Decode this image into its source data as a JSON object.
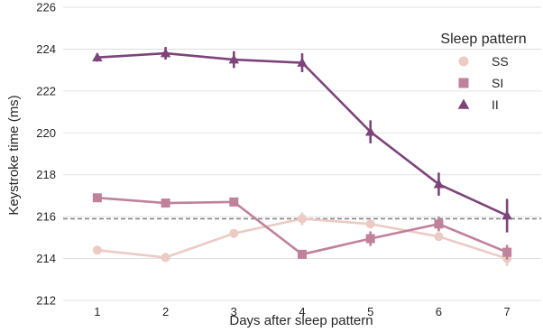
{
  "chart_data": {
    "type": "line",
    "xlabel": "Days after sleep pattern",
    "ylabel": "Keystroke time (ms)",
    "x": [
      1,
      2,
      3,
      4,
      5,
      6,
      7
    ],
    "x_ticks": [
      "1",
      "2",
      "3",
      "4",
      "5",
      "6",
      "7"
    ],
    "ylim": [
      212,
      226
    ],
    "y_ticks": [
      "212",
      "214",
      "216",
      "218",
      "220",
      "222",
      "224",
      "226"
    ],
    "grid": "horizontal",
    "reference_line": {
      "y": 215.9,
      "style": "dashed",
      "color": "#888888"
    },
    "legend": {
      "title": "Sleep pattern",
      "placement": "top-right"
    },
    "series": [
      {
        "name": "SS",
        "marker": "circle",
        "color": "#ebcbc4",
        "values": [
          214.4,
          214.05,
          215.2,
          215.9,
          215.65,
          215.05,
          214.0
        ],
        "error": [
          0.15,
          0.15,
          0.2,
          0.3,
          0.2,
          0.2,
          0.35
        ]
      },
      {
        "name": "SI",
        "marker": "square",
        "color": "#c0819a",
        "values": [
          216.9,
          216.65,
          216.7,
          214.2,
          214.95,
          215.65,
          214.3
        ],
        "error": [
          0.15,
          0.15,
          0.15,
          0.2,
          0.35,
          0.35,
          0.35
        ]
      },
      {
        "name": "II",
        "marker": "triangle",
        "color": "#7d4479",
        "values": [
          223.6,
          223.8,
          223.5,
          223.35,
          220.05,
          217.55,
          216.05
        ],
        "error": [
          0.2,
          0.3,
          0.4,
          0.45,
          0.55,
          0.55,
          0.8
        ]
      }
    ]
  }
}
